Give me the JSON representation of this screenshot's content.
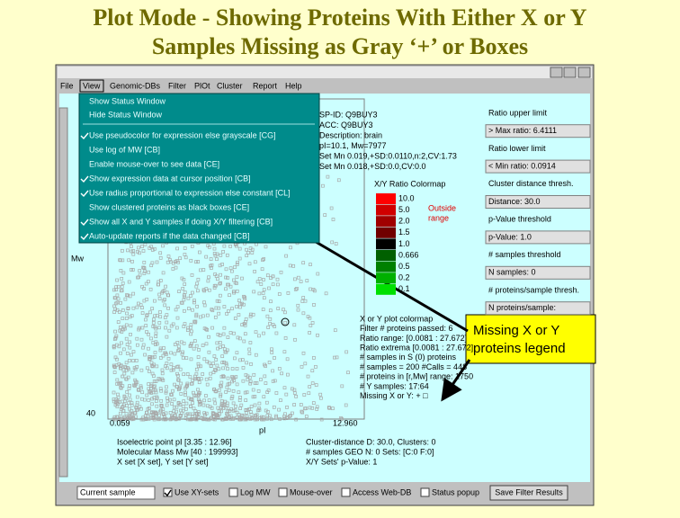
{
  "title": {
    "lines": [
      "Plot Mode - Showing Proteins With Either X or Y",
      "Samples Missing as Gray ‘+’ or Boxes"
    ]
  },
  "menu": [
    "File",
    "View",
    "Genomic-DBs",
    "Filter",
    "PlOt",
    "Cluster",
    "Report",
    "Help"
  ],
  "view_menu": {
    "items": [
      {
        "label": "Show Status Window",
        "checked": false
      },
      {
        "label": "Hide Status Window",
        "checked": false
      },
      {
        "label": "Use pseudocolor for expression else grayscale [CG]",
        "checked": true
      },
      {
        "label": "Use log of MW [CB]",
        "checked": false
      },
      {
        "label": "Enable mouse-over to see data [CE]",
        "checked": false
      },
      {
        "label": "Show expression data at cursor position [CB]",
        "checked": true
      },
      {
        "label": "Use radius proportional to expression else constant [CL]",
        "checked": true
      },
      {
        "label": "Show clustered proteins as black boxes [CE]",
        "checked": false
      },
      {
        "label": "Show all X and Y samples if doing X/Y filtering [CB]",
        "checked": true
      },
      {
        "label": "Auto-update reports if the data changed [CB]",
        "checked": true
      }
    ]
  },
  "info": [
    "SP-ID: Q9BUY3",
    "ACC: Q9BUY3",
    "Description: brain",
    "pI=10.1, Mw=7977",
    "Set Mn 0.019,+SD:0.0110,n:2,CV:1.73",
    "Set Mn 0.018,+SD:0.0,CV:0.0"
  ],
  "colormap": {
    "title": "X/Y Ratio Colormap",
    "labels": [
      "10.0",
      "5.0",
      "2.0",
      "1.5",
      "1.0",
      "0.666",
      "0.5",
      "0.2",
      "0.1"
    ],
    "colors": [
      "#ff0000",
      "#d00000",
      "#a00000",
      "#700000",
      "#000000",
      "#006000",
      "#008000",
      "#00b000",
      "#00e000"
    ],
    "outside": [
      "Outside",
      "range"
    ]
  },
  "panel": [
    "Ratio upper limit",
    "> Max ratio: 6.4111",
    "Ratio lower limit",
    "< Min ratio: 0.0914",
    "Cluster distance thresh.",
    "Distance: 30.0",
    "p-Value threshold",
    "p-Value: 1.0",
    "# samples threshold",
    "N samples: 0",
    "# proteins/sample thresh.",
    "N proteins/sample:"
  ],
  "status": [
    "X or Y plot colormap",
    "Filter # proteins passed: 6",
    "Ratio range: [0.0081 : 27.672]",
    "Ratio extrema [0.0081 : 27.672]",
    "# samples in S (0) proteins",
    "# samples = 200 #Calls = 448",
    "# proteins in [r,Mw] range: 1750",
    "# Y samples: 17:64",
    "Missing X or Y: + □"
  ],
  "axes": {
    "y_label": "Mw",
    "y_min": "40",
    "x_min": "0.059",
    "x_max": "12.960",
    "x_label": "pI"
  },
  "footer": {
    "left": [
      "Isoelectric point pI [3.35 : 12.96]",
      "Molecular Mass Mw [40 : 199993]",
      "X set [X set], Y set [Y set]"
    ],
    "right": [
      "Cluster-distance D: 30.0, Clusters: 0",
      "# samples GEO N: 0 Sets: [C:0 F:0]",
      "X/Y Sets' p-Value: 1"
    ]
  },
  "toolbar": {
    "dropdown": "Current sample",
    "checkboxes": [
      {
        "label": "Use XY-sets",
        "checked": true
      },
      {
        "label": "Log MW",
        "checked": false
      },
      {
        "label": "Mouse-over",
        "checked": false
      },
      {
        "label": "Access Web-DB",
        "checked": false
      },
      {
        "label": "Status popup",
        "checked": false
      }
    ],
    "button": "Save Filter Results"
  },
  "callout": {
    "lines": [
      "Missing X  or Y",
      "proteins legend"
    ]
  }
}
